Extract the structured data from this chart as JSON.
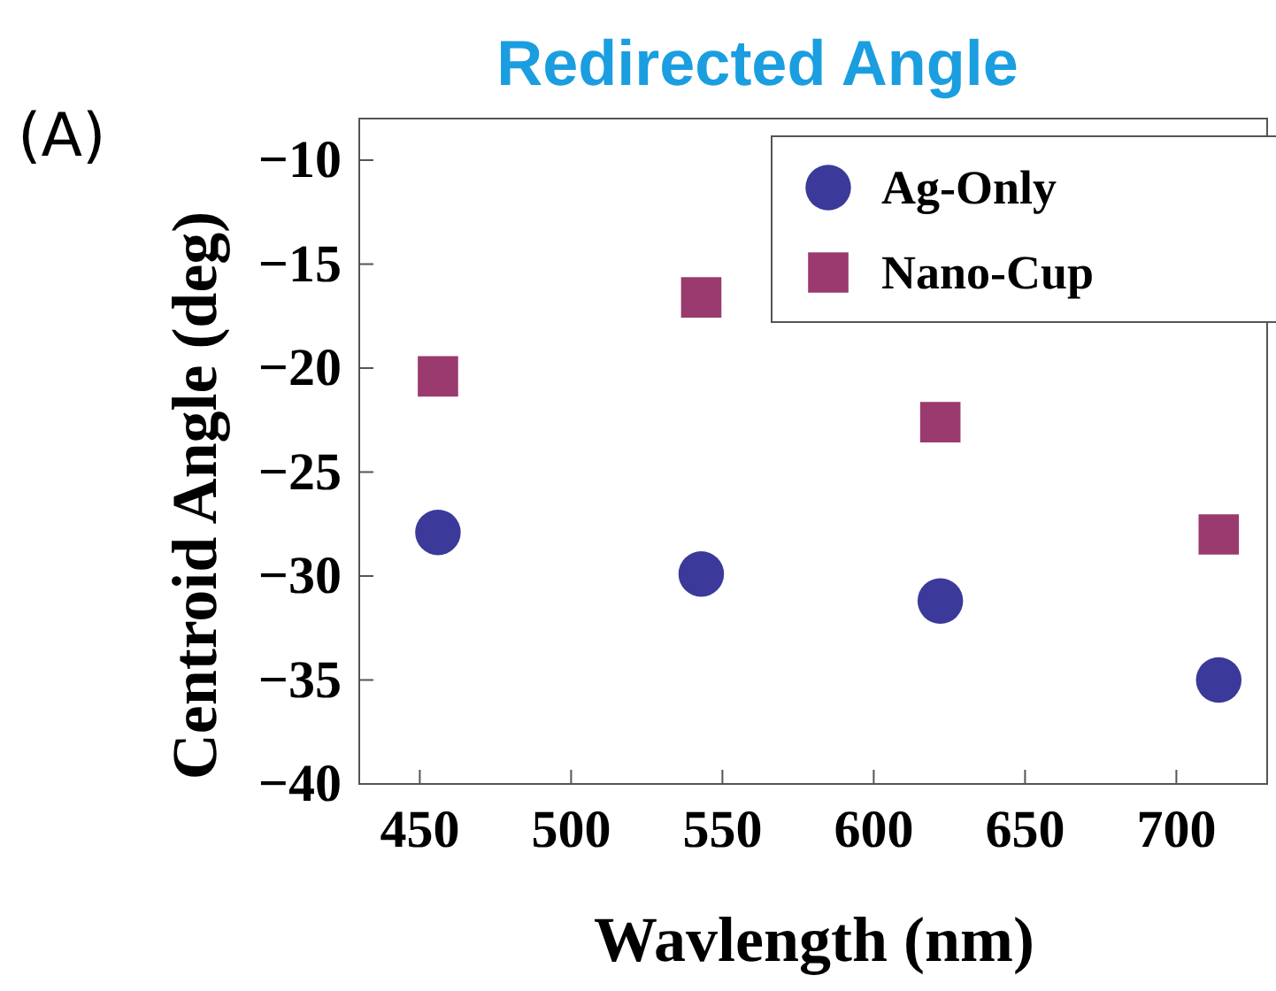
{
  "chart_data": {
    "type": "scatter",
    "title": "Redirected Angle",
    "xlabel": "Wavlength (nm)",
    "ylabel": "Centroid Angle (deg)",
    "annotations": [
      "(A)"
    ],
    "x": [
      456,
      543,
      622,
      714
    ],
    "series": [
      {
        "name": "Ag-Only",
        "color": "#3b3a9a",
        "values": [
          -27.9,
          -29.9,
          -31.2,
          -35.0
        ],
        "marker": "circle"
      },
      {
        "name": "Nano-Cup",
        "color": "#9b3a6e",
        "values": [
          -20.4,
          -16.6,
          -22.6,
          -28.0
        ],
        "marker": "square"
      }
    ],
    "xlim": [
      430,
      730
    ],
    "xticks": [
      450,
      500,
      550,
      600,
      650,
      700
    ],
    "ylim": [
      -40,
      -8
    ],
    "yticks": [
      -40,
      -35,
      -30,
      -25,
      -20,
      -15,
      -10
    ],
    "grid": false,
    "legend": "top right"
  }
}
